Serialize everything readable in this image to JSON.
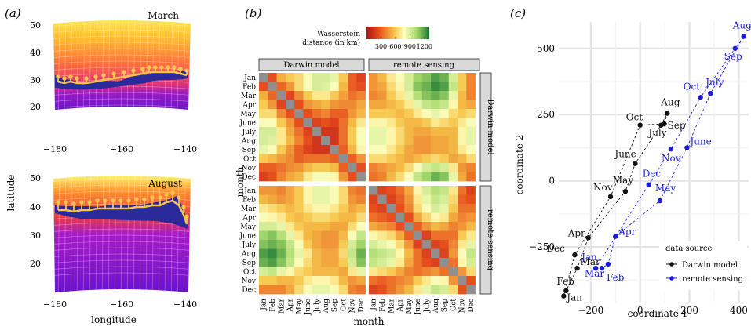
{
  "panel_a": {
    "label": "(a)",
    "map_top": {
      "title": "March"
    },
    "map_bottom": {
      "title": "August"
    },
    "lat_ticks_top": [
      "50",
      "40",
      "30",
      "20"
    ],
    "lat_ticks_bottom": [
      "50",
      "40",
      "30",
      "20"
    ],
    "lon_ticks": [
      "−180",
      "−160",
      "−140"
    ],
    "ylabel": "latitude",
    "xlabel": "longitude",
    "colors": {
      "front": "#2a2a9a",
      "tracks": "#f5c451",
      "warm": "#ffe84a",
      "mid": "#ff6a3a",
      "cold": "#6a13ce"
    }
  },
  "panel_b": {
    "label": "(b)",
    "legend_title": "Wasserstein\ndistance (in km)",
    "legend_title_line1": "Wasserstein",
    "legend_title_line2": "distance (in km)",
    "legend_ticks": [
      "300",
      "600",
      "900",
      "1200"
    ],
    "strip_top_left": "Darwin model",
    "strip_top_right": "remote sensing",
    "strip_right_top": "Darwin model",
    "strip_right_bottom": "remote sensing",
    "ylabel": "month",
    "xlabel": "month",
    "months": [
      "Jan",
      "Feb",
      "Mar",
      "Apr",
      "May",
      "June",
      "July",
      "Aug",
      "Sep",
      "Oct",
      "Nov",
      "Dec"
    ]
  },
  "panel_c": {
    "label": "(c)",
    "xlabel": "coordinate 1",
    "ylabel": "coordinate 2",
    "legend_title": "data source",
    "legend_items": [
      "Darwin model",
      "remote sensing"
    ]
  },
  "chart_data": [
    {
      "type": "heatmap",
      "panel": "b",
      "value_range": [
        0,
        1300
      ],
      "legend_ticks": [
        300,
        600,
        900,
        1200
      ],
      "note_colors": [
        "#b0121b",
        "#e8501e",
        "#f6c64a",
        "#ffffbf",
        "#a7d96a",
        "#1a7a32"
      ],
      "rows": [
        "Jan",
        "Feb",
        "Mar",
        "Apr",
        "May",
        "June",
        "July",
        "Aug",
        "Sep",
        "Oct",
        "Nov",
        "Dec"
      ],
      "cols": [
        "Jan",
        "Feb",
        "Mar",
        "Apr",
        "May",
        "June",
        "July",
        "Aug",
        "Sep",
        "Oct",
        "Nov",
        "Dec"
      ],
      "facets": [
        {
          "row": "Darwin model",
          "col": "Darwin model",
          "values": [
            [
              0,
              250,
              520,
              600,
              650,
              800,
              900,
              900,
              850,
              600,
              300,
              200
            ],
            [
              250,
              0,
              320,
              450,
              650,
              800,
              900,
              880,
              800,
              550,
              300,
              250
            ],
            [
              520,
              320,
              0,
              220,
              420,
              600,
              700,
              700,
              600,
              480,
              350,
              400
            ],
            [
              600,
              450,
              220,
              0,
              250,
              450,
              500,
              550,
              450,
              420,
              420,
              500
            ],
            [
              650,
              650,
              420,
              250,
              0,
              250,
              350,
              400,
              300,
              300,
              450,
              550
            ],
            [
              800,
              800,
              600,
              450,
              250,
              0,
              200,
              250,
              200,
              350,
              550,
              700
            ],
            [
              900,
              900,
              700,
              500,
              350,
              200,
              0,
              150,
              150,
              350,
              600,
              800
            ],
            [
              900,
              880,
              700,
              550,
              400,
              250,
              150,
              0,
              150,
              350,
              600,
              800
            ],
            [
              850,
              800,
              600,
              450,
              300,
              200,
              150,
              150,
              0,
              300,
              550,
              750
            ],
            [
              600,
              550,
              480,
              420,
              300,
              350,
              350,
              350,
              300,
              0,
              300,
              450
            ],
            [
              300,
              300,
              350,
              420,
              450,
              550,
              600,
              600,
              550,
              300,
              0,
              250
            ],
            [
              200,
              250,
              400,
              500,
              550,
              700,
              800,
              800,
              750,
              450,
              250,
              0
            ]
          ]
        },
        {
          "row": "Darwin model",
          "col": "remote sensing",
          "values": [
            [
              450,
              550,
              700,
              800,
              900,
              1050,
              1100,
              1200,
              1150,
              900,
              600,
              400
            ],
            [
              450,
              500,
              650,
              750,
              900,
              1100,
              1150,
              1250,
              1200,
              950,
              600,
              400
            ],
            [
              400,
              450,
              600,
              700,
              850,
              1000,
              1100,
              1150,
              1100,
              850,
              550,
              400
            ],
            [
              500,
              500,
              550,
              600,
              700,
              850,
              950,
              1000,
              950,
              750,
              550,
              500
            ],
            [
              600,
              600,
              600,
              550,
              600,
              700,
              800,
              850,
              800,
              650,
              600,
              650
            ],
            [
              750,
              750,
              700,
              600,
              550,
              550,
              600,
              700,
              650,
              600,
              700,
              800
            ],
            [
              850,
              850,
              750,
              650,
              550,
              500,
              500,
              550,
              550,
              550,
              750,
              850
            ],
            [
              850,
              850,
              750,
              650,
              550,
              450,
              450,
              500,
              500,
              550,
              750,
              850
            ],
            [
              800,
              800,
              700,
              600,
              500,
              450,
              450,
              500,
              500,
              550,
              700,
              800
            ],
            [
              650,
              650,
              600,
              550,
              500,
              550,
              600,
              650,
              600,
              500,
              550,
              650
            ],
            [
              400,
              450,
              500,
              550,
              650,
              800,
              900,
              950,
              900,
              700,
              450,
              400
            ],
            [
              350,
              400,
              550,
              650,
              800,
              950,
              1050,
              1150,
              1100,
              850,
              500,
              350
            ]
          ]
        },
        {
          "row": "remote sensing",
          "col": "Darwin model",
          "values": [
            [
              450,
              450,
              400,
              500,
              600,
              750,
              850,
              850,
              800,
              650,
              400,
              350
            ],
            [
              550,
              500,
              450,
              500,
              600,
              750,
              850,
              850,
              800,
              650,
              450,
              400
            ],
            [
              700,
              650,
              600,
              550,
              600,
              700,
              750,
              750,
              700,
              600,
              500,
              550
            ],
            [
              800,
              750,
              700,
              600,
              550,
              600,
              650,
              650,
              600,
              550,
              550,
              650
            ],
            [
              900,
              900,
              850,
              700,
              600,
              550,
              550,
              550,
              500,
              500,
              650,
              800
            ],
            [
              1050,
              1100,
              1000,
              850,
              700,
              550,
              500,
              450,
              450,
              550,
              800,
              950
            ],
            [
              1100,
              1150,
              1100,
              950,
              800,
              600,
              500,
              450,
              450,
              600,
              900,
              1050
            ],
            [
              1200,
              1250,
              1150,
              1000,
              850,
              700,
              550,
              500,
              500,
              650,
              950,
              1150
            ],
            [
              1150,
              1200,
              1100,
              950,
              800,
              650,
              550,
              500,
              500,
              600,
              900,
              1100
            ],
            [
              900,
              950,
              850,
              750,
              650,
              600,
              550,
              550,
              550,
              500,
              700,
              850
            ],
            [
              600,
              600,
              550,
              550,
              600,
              700,
              750,
              750,
              700,
              550,
              450,
              500
            ],
            [
              400,
              400,
              400,
              500,
              650,
              800,
              850,
              850,
              800,
              650,
              400,
              350
            ]
          ]
        },
        {
          "row": "remote sensing",
          "col": "remote sensing",
          "values": [
            [
              0,
              200,
              250,
              350,
              500,
              750,
              900,
              1000,
              950,
              700,
              350,
              200
            ],
            [
              200,
              0,
              200,
              300,
              450,
              700,
              850,
              950,
              900,
              650,
              300,
              250
            ],
            [
              250,
              200,
              0,
              250,
              400,
              650,
              800,
              900,
              850,
              600,
              350,
              350
            ],
            [
              350,
              300,
              250,
              0,
              250,
              500,
              650,
              750,
              700,
              500,
              400,
              450
            ],
            [
              500,
              450,
              400,
              250,
              0,
              300,
              450,
              550,
              500,
              400,
              450,
              550
            ],
            [
              750,
              700,
              650,
              500,
              300,
              0,
              200,
              350,
              350,
              350,
              600,
              700
            ],
            [
              900,
              850,
              800,
              650,
              450,
              200,
              0,
              200,
              250,
              400,
              700,
              850
            ],
            [
              1000,
              950,
              900,
              750,
              550,
              350,
              200,
              0,
              200,
              450,
              800,
              950
            ],
            [
              950,
              900,
              850,
              700,
              500,
              350,
              250,
              200,
              0,
              350,
              750,
              900
            ],
            [
              700,
              650,
              600,
              500,
              400,
              350,
              400,
              450,
              350,
              0,
              450,
              650
            ],
            [
              350,
              300,
              350,
              400,
              450,
              600,
              700,
              800,
              750,
              450,
              0,
              250
            ],
            [
              200,
              250,
              350,
              450,
              550,
              700,
              850,
              950,
              900,
              650,
              250,
              0
            ]
          ]
        }
      ]
    },
    {
      "type": "scatter",
      "panel": "c",
      "xlim": [
        -330,
        440
      ],
      "ylim": [
        -460,
        600
      ],
      "xticks": [
        -200,
        0,
        200,
        400
      ],
      "yticks": [
        -250,
        0,
        250,
        500
      ],
      "xlabel": "coordinate 1",
      "ylabel": "coordinate 2",
      "series": [
        {
          "name": "Darwin model",
          "color": "#111111",
          "points": [
            {
              "label": "Jan",
              "x": -310,
              "y": -435
            },
            {
              "label": "Feb",
              "x": -300,
              "y": -415
            },
            {
              "label": "Mar",
              "x": -255,
              "y": -330
            },
            {
              "label": "Apr",
              "x": -210,
              "y": -215
            },
            {
              "label": "May",
              "x": -60,
              "y": -40
            },
            {
              "label": "June",
              "x": -20,
              "y": 65
            },
            {
              "label": "July",
              "x": 85,
              "y": 210
            },
            {
              "label": "Aug",
              "x": 110,
              "y": 255
            },
            {
              "label": "Sep",
              "x": 98,
              "y": 215
            },
            {
              "label": "Oct",
              "x": 0,
              "y": 210
            },
            {
              "label": "Nov",
              "x": -120,
              "y": -60
            },
            {
              "label": "Dec",
              "x": -265,
              "y": -280
            }
          ]
        },
        {
          "name": "remote sensing",
          "color": "#1c1cd8",
          "points": [
            {
              "label": "Jan",
              "x": -180,
              "y": -330
            },
            {
              "label": "Feb",
              "x": -155,
              "y": -330
            },
            {
              "label": "Mar",
              "x": -130,
              "y": -315
            },
            {
              "label": "Apr",
              "x": -100,
              "y": -210
            },
            {
              "label": "May",
              "x": 80,
              "y": -75
            },
            {
              "label": "June",
              "x": 190,
              "y": 125
            },
            {
              "label": "July",
              "x": 285,
              "y": 330
            },
            {
              "label": "Aug",
              "x": 420,
              "y": 545
            },
            {
              "label": "Sep",
              "x": 385,
              "y": 500
            },
            {
              "label": "Oct",
              "x": 245,
              "y": 315
            },
            {
              "label": "Nov",
              "x": 125,
              "y": 120
            },
            {
              "label": "Dec",
              "x": 35,
              "y": -15
            }
          ]
        }
      ]
    }
  ]
}
